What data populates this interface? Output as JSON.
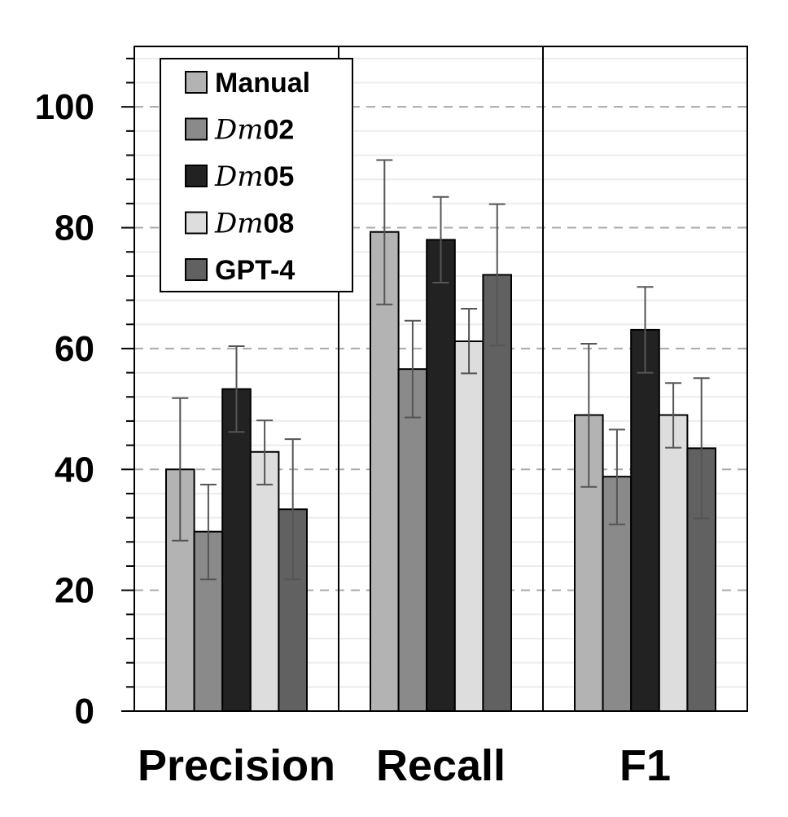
{
  "chart_data": {
    "type": "bar",
    "categories": [
      "Precision",
      "Recall",
      "F1"
    ],
    "series": [
      {
        "name": "Manual",
        "name_parts": [
          {
            "text": "Manual",
            "italic": false
          }
        ],
        "color": "#b3b3b3",
        "values": [
          40,
          79.3,
          49
        ],
        "err_low": [
          28.2,
          67.3,
          37.1
        ],
        "err_high": [
          51.8,
          91.2,
          60.8
        ]
      },
      {
        "name": "Dm02",
        "name_parts": [
          {
            "text": "Dm",
            "italic": true
          },
          {
            "text": "02",
            "italic": false
          }
        ],
        "color": "#8a8a8a",
        "values": [
          29.7,
          56.6,
          38.8
        ],
        "err_low": [
          21.8,
          48.6,
          30.9
        ],
        "err_high": [
          37.5,
          64.6,
          46.6
        ]
      },
      {
        "name": "Dm05",
        "name_parts": [
          {
            "text": "Dm",
            "italic": true
          },
          {
            "text": "05",
            "italic": false
          }
        ],
        "color": "#222222",
        "values": [
          53.3,
          78,
          63.1
        ],
        "err_low": [
          46.2,
          70.9,
          56
        ],
        "err_high": [
          60.4,
          85.1,
          70.2
        ]
      },
      {
        "name": "Dm08",
        "name_parts": [
          {
            "text": "Dm",
            "italic": true
          },
          {
            "text": "08",
            "italic": false
          }
        ],
        "color": "#dddddd",
        "values": [
          42.9,
          61.2,
          49
        ],
        "err_low": [
          37.5,
          55.9,
          43.6
        ],
        "err_high": [
          48.1,
          66.6,
          54.3
        ]
      },
      {
        "name": "GPT-4",
        "name_parts": [
          {
            "text": "GPT-4",
            "italic": false
          }
        ],
        "color": "#616161",
        "values": [
          33.4,
          72.2,
          43.5
        ],
        "err_low": [
          21.8,
          60.5,
          31.9
        ],
        "err_high": [
          45,
          83.9,
          55.1
        ]
      }
    ],
    "xlabel": "",
    "ylabel": "",
    "ylim": [
      0,
      110
    ],
    "yticks": [
      "0",
      "20",
      "40",
      "60",
      "80",
      "100"
    ],
    "grid": true,
    "legend": "top-left",
    "title": ""
  }
}
